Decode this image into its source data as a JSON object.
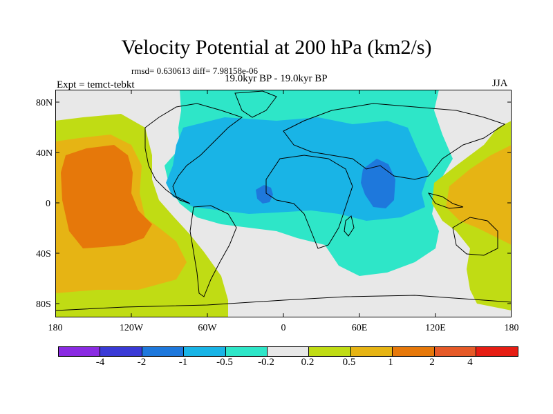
{
  "title": "Velocity Potential at 200 hPa (km2/s)",
  "stats": "rmsd= 0.630613 diff= 7.98158e-06",
  "period": "19.0kyr BP - 19.0kyr BP",
  "experiment": "Expt = temct-tebkt",
  "season": "JJA",
  "lat_labels": [
    "80N",
    "40N",
    "0",
    "40S",
    "80S"
  ],
  "lon_labels": [
    "180",
    "120W",
    "60W",
    "0",
    "60E",
    "120E",
    "180"
  ],
  "colorbar": {
    "labels": [
      "-4",
      "-2",
      "-1",
      "-0.5",
      "-0.2",
      "0.2",
      "0.5",
      "1",
      "2",
      "4"
    ],
    "colors": [
      "#8a2be2",
      "#3a3ad6",
      "#1e78dc",
      "#19b4e6",
      "#2ee6c8",
      "#e8e8e8",
      "#c0dc14",
      "#e6b414",
      "#e6780a",
      "#e65a28",
      "#e61e14"
    ]
  },
  "map_colors": {
    "ocean_neutral": "#e8e8e8",
    "light_cyan": "#2ee6c8",
    "sky_blue": "#19b4e6",
    "blue": "#1e78dc",
    "yellow_green": "#c0dc14",
    "gold": "#e6b414",
    "orange": "#e6780a"
  }
}
